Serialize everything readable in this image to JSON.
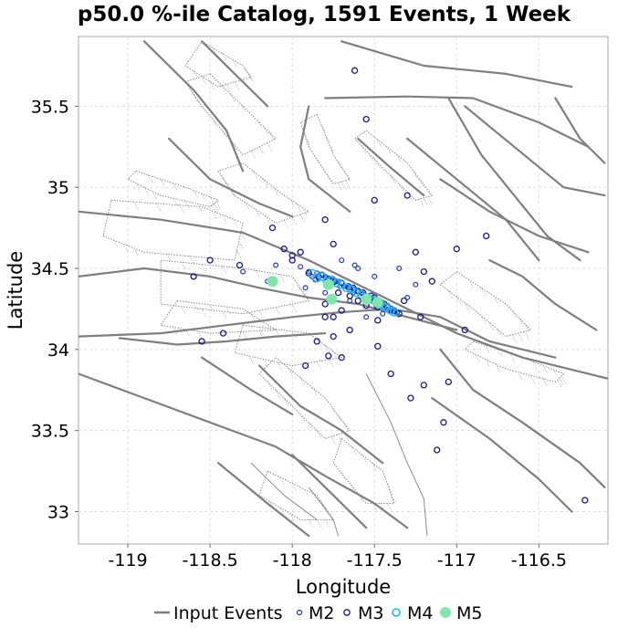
{
  "chart_data": {
    "type": "scatter",
    "title": "p50.0 %-ile Catalog, 1591 Events, 1 Week",
    "xlabel": "Longitude",
    "ylabel": "Latitude",
    "xlim": [
      -119.3,
      -116.08
    ],
    "ylim": [
      32.8,
      35.93
    ],
    "x_ticks": [
      -119,
      -118.5,
      -118,
      -117.5,
      -117,
      -116.5
    ],
    "x_tick_labels": [
      "-119",
      "-118.5",
      "-118",
      "-117.5",
      "-117",
      "-116.5"
    ],
    "y_ticks": [
      33,
      33.5,
      34,
      34.5,
      35,
      35.5
    ],
    "y_tick_labels": [
      "33",
      "33.5",
      "34",
      "34.5",
      "35",
      "35.5"
    ],
    "grid": true,
    "legend_position": "bottom",
    "legend": [
      {
        "label": "Input Events",
        "kind": "line",
        "color": "#7f7f7f"
      },
      {
        "label": "M2",
        "kind": "small-circle",
        "color": "#1f3fbf"
      },
      {
        "label": "M3",
        "kind": "circle",
        "color": "#1a1a8c"
      },
      {
        "label": "M4",
        "kind": "circle",
        "color": "#1fb4ff"
      },
      {
        "label": "M5",
        "kind": "filled-circle",
        "color": "#7fe8a8"
      }
    ],
    "fault_traces": [
      [
        [
          -119.3,
          34.85
        ],
        [
          -118.8,
          34.8
        ],
        [
          -118.3,
          34.72
        ],
        [
          -117.9,
          34.55
        ],
        [
          -117.6,
          34.4
        ],
        [
          -117.3,
          34.25
        ],
        [
          -117.0,
          34.1
        ],
        [
          -116.6,
          33.95
        ],
        [
          -116.08,
          33.82
        ]
      ],
      [
        [
          -119.3,
          34.45
        ],
        [
          -118.9,
          34.5
        ],
        [
          -118.5,
          34.45
        ],
        [
          -118.2,
          34.38
        ],
        [
          -117.9,
          34.32
        ],
        [
          -117.6,
          34.28
        ],
        [
          -117.3,
          34.2
        ],
        [
          -117.0,
          34.12
        ]
      ],
      [
        [
          -119.3,
          34.08
        ],
        [
          -118.8,
          34.1
        ],
        [
          -118.4,
          34.15
        ],
        [
          -118.0,
          34.2
        ],
        [
          -117.7,
          34.23
        ],
        [
          -117.4,
          34.25
        ],
        [
          -117.1,
          34.2
        ],
        [
          -116.8,
          34.05
        ],
        [
          -116.4,
          33.95
        ]
      ],
      [
        [
          -119.3,
          33.85
        ],
        [
          -118.9,
          33.7
        ],
        [
          -118.5,
          33.55
        ],
        [
          -118.1,
          33.4
        ],
        [
          -117.8,
          33.22
        ],
        [
          -117.5,
          33.05
        ],
        [
          -117.3,
          32.9
        ]
      ],
      [
        [
          -119.05,
          34.07
        ],
        [
          -118.7,
          34.03
        ],
        [
          -118.4,
          34.05
        ],
        [
          -118.1,
          34.08
        ],
        [
          -117.8,
          34.1
        ]
      ],
      [
        [
          -118.9,
          35.9
        ],
        [
          -118.6,
          35.6
        ],
        [
          -118.4,
          35.35
        ],
        [
          -118.3,
          35.1
        ]
      ],
      [
        [
          -118.55,
          35.9
        ],
        [
          -118.35,
          35.7
        ],
        [
          -118.15,
          35.5
        ]
      ],
      [
        [
          -117.7,
          35.9
        ],
        [
          -117.2,
          35.75
        ],
        [
          -116.7,
          35.7
        ],
        [
          -116.3,
          35.62
        ]
      ],
      [
        [
          -117.8,
          35.55
        ],
        [
          -117.3,
          35.56
        ],
        [
          -116.9,
          35.55
        ],
        [
          -116.5,
          35.4
        ],
        [
          -116.2,
          35.25
        ]
      ],
      [
        [
          -117.3,
          35.3
        ],
        [
          -117.0,
          35.05
        ],
        [
          -116.7,
          34.8
        ],
        [
          -116.5,
          34.55
        ]
      ],
      [
        [
          -117.05,
          35.55
        ],
        [
          -116.85,
          35.2
        ],
        [
          -116.65,
          34.95
        ],
        [
          -116.45,
          34.7
        ],
        [
          -116.25,
          34.55
        ]
      ],
      [
        [
          -117.1,
          35.05
        ],
        [
          -116.8,
          34.85
        ],
        [
          -116.5,
          34.7
        ],
        [
          -116.2,
          34.6
        ]
      ],
      [
        [
          -116.95,
          35.5
        ],
        [
          -116.65,
          35.25
        ],
        [
          -116.35,
          35.0
        ],
        [
          -116.1,
          34.95
        ]
      ],
      [
        [
          -116.8,
          34.55
        ],
        [
          -116.6,
          34.45
        ],
        [
          -116.4,
          34.28
        ],
        [
          -116.15,
          34.12
        ]
      ],
      [
        [
          -116.4,
          35.55
        ],
        [
          -116.25,
          35.3
        ],
        [
          -116.1,
          35.15
        ]
      ],
      [
        [
          -117.6,
          35.3
        ],
        [
          -117.4,
          35.12
        ],
        [
          -117.2,
          34.95
        ]
      ],
      [
        [
          -117.9,
          35.5
        ],
        [
          -117.95,
          35.25
        ],
        [
          -117.9,
          35.05
        ],
        [
          -117.65,
          34.85
        ]
      ],
      [
        [
          -118.75,
          35.3
        ],
        [
          -118.5,
          35.05
        ],
        [
          -118.2,
          34.9
        ],
        [
          -118.0,
          34.82
        ]
      ],
      [
        [
          -118.2,
          33.9
        ],
        [
          -117.95,
          33.65
        ],
        [
          -117.7,
          33.5
        ],
        [
          -117.45,
          33.3
        ]
      ],
      [
        [
          -118.0,
          33.35
        ],
        [
          -117.75,
          33.1
        ],
        [
          -117.55,
          32.9
        ]
      ],
      [
        [
          -117.15,
          33.7
        ],
        [
          -116.8,
          33.45
        ],
        [
          -116.5,
          33.2
        ],
        [
          -116.3,
          33.0
        ]
      ],
      [
        [
          -117.1,
          34.0
        ],
        [
          -116.9,
          33.75
        ],
        [
          -116.6,
          33.55
        ],
        [
          -116.25,
          33.3
        ],
        [
          -116.1,
          33.15
        ]
      ],
      [
        [
          -118.55,
          33.95
        ],
        [
          -118.25,
          33.75
        ],
        [
          -118.0,
          33.6
        ]
      ],
      [
        [
          -118.45,
          33.3
        ],
        [
          -118.15,
          33.05
        ],
        [
          -117.9,
          32.85
        ]
      ]
    ],
    "thin_traces": [
      [
        [
          -117.55,
          33.85
        ],
        [
          -117.4,
          33.55
        ],
        [
          -117.3,
          33.3
        ],
        [
          -117.2,
          33.08
        ],
        [
          -117.18,
          32.85
        ]
      ],
      [
        [
          -117.9,
          33.15
        ],
        [
          -117.75,
          32.95
        ],
        [
          -117.72,
          32.85
        ]
      ],
      [
        [
          -118.25,
          33.3
        ],
        [
          -118.05,
          33.1
        ],
        [
          -117.85,
          32.95
        ]
      ]
    ],
    "dotted_zones": [
      [
        [
          -119.1,
          34.92
        ],
        [
          -118.55,
          34.88
        ],
        [
          -118.3,
          34.78
        ],
        [
          -118.35,
          34.55
        ],
        [
          -118.9,
          34.6
        ],
        [
          -119.15,
          34.7
        ]
      ],
      [
        [
          -118.8,
          34.55
        ],
        [
          -118.3,
          34.5
        ],
        [
          -118.0,
          34.45
        ],
        [
          -117.9,
          34.3
        ],
        [
          -118.3,
          34.22
        ],
        [
          -118.8,
          34.28
        ]
      ],
      [
        [
          -118.7,
          34.3
        ],
        [
          -118.3,
          34.25
        ],
        [
          -118.1,
          34.12
        ],
        [
          -118.5,
          34.1
        ],
        [
          -118.8,
          34.15
        ]
      ],
      [
        [
          -118.3,
          34.15
        ],
        [
          -117.9,
          34.1
        ],
        [
          -117.7,
          33.95
        ],
        [
          -118.0,
          33.9
        ],
        [
          -118.35,
          33.98
        ]
      ],
      [
        [
          -118.1,
          33.95
        ],
        [
          -117.8,
          33.7
        ],
        [
          -117.65,
          33.5
        ],
        [
          -117.8,
          33.45
        ],
        [
          -118.0,
          33.65
        ],
        [
          -118.2,
          33.85
        ]
      ],
      [
        [
          -118.15,
          33.25
        ],
        [
          -117.85,
          33.1
        ],
        [
          -117.75,
          32.95
        ],
        [
          -117.95,
          32.95
        ],
        [
          -118.2,
          33.1
        ]
      ],
      [
        [
          -117.7,
          33.45
        ],
        [
          -117.45,
          33.25
        ],
        [
          -117.38,
          33.05
        ],
        [
          -117.55,
          33.05
        ],
        [
          -117.75,
          33.3
        ]
      ],
      [
        [
          -118.5,
          35.7
        ],
        [
          -118.25,
          35.45
        ],
        [
          -118.1,
          35.3
        ],
        [
          -118.3,
          35.2
        ],
        [
          -118.55,
          35.5
        ],
        [
          -118.65,
          35.65
        ]
      ],
      [
        [
          -118.3,
          35.15
        ],
        [
          -118.05,
          34.95
        ],
        [
          -117.9,
          34.85
        ],
        [
          -118.1,
          34.78
        ],
        [
          -118.35,
          34.95
        ],
        [
          -118.45,
          35.1
        ]
      ],
      [
        [
          -117.85,
          35.45
        ],
        [
          -117.75,
          35.2
        ],
        [
          -117.65,
          35.05
        ],
        [
          -117.75,
          35.02
        ],
        [
          -117.9,
          35.25
        ],
        [
          -117.95,
          35.4
        ]
      ],
      [
        [
          -117.55,
          35.35
        ],
        [
          -117.3,
          35.15
        ],
        [
          -117.15,
          34.95
        ],
        [
          -117.25,
          34.92
        ],
        [
          -117.45,
          35.12
        ],
        [
          -117.62,
          35.3
        ]
      ],
      [
        [
          -117.0,
          34.48
        ],
        [
          -116.7,
          34.28
        ],
        [
          -116.55,
          34.12
        ],
        [
          -116.7,
          34.08
        ],
        [
          -116.9,
          34.25
        ],
        [
          -117.1,
          34.4
        ]
      ],
      [
        [
          -116.9,
          34.05
        ],
        [
          -116.6,
          33.95
        ],
        [
          -116.35,
          33.85
        ],
        [
          -116.4,
          33.8
        ],
        [
          -116.7,
          33.88
        ],
        [
          -116.95,
          34.0
        ]
      ],
      [
        [
          -118.95,
          35.1
        ],
        [
          -118.65,
          35.0
        ],
        [
          -118.45,
          34.92
        ],
        [
          -118.5,
          34.88
        ],
        [
          -118.8,
          34.95
        ],
        [
          -119.0,
          35.05
        ]
      ],
      [
        [
          -118.55,
          35.9
        ],
        [
          -118.3,
          35.75
        ],
        [
          -118.25,
          35.68
        ],
        [
          -118.45,
          35.62
        ],
        [
          -118.65,
          35.75
        ]
      ]
    ],
    "series": [
      {
        "name": "M2",
        "x": [
          -117.85,
          -117.82,
          -117.8,
          -117.78,
          -117.75,
          -117.72,
          -117.7,
          -117.68,
          -117.65,
          -117.62,
          -117.6,
          -117.58,
          -117.55,
          -117.52,
          -117.5,
          -117.48,
          -117.45,
          -117.42,
          -117.4,
          -117.38,
          -117.9,
          -117.88,
          -117.84,
          -117.77,
          -117.73,
          -117.66,
          -117.63,
          -117.57,
          -117.53,
          -117.47,
          -117.44,
          -117.41,
          -117.36,
          -117.86,
          -117.79,
          -117.71,
          -117.64,
          -117.56,
          -117.49,
          -117.43,
          -117.95,
          -117.6,
          -117.7,
          -117.5,
          -117.55,
          -117.8,
          -117.65,
          -118.1,
          -118.15,
          -117.3,
          -117.35,
          -118.3,
          -117.25,
          -117.92,
          -117.75,
          -117.45,
          -117.62
        ],
        "y": [
          34.47,
          34.46,
          34.45,
          34.44,
          34.43,
          34.42,
          34.41,
          34.39,
          34.38,
          34.37,
          34.36,
          34.35,
          34.33,
          34.32,
          34.31,
          34.29,
          34.28,
          34.27,
          34.25,
          34.24,
          34.48,
          34.45,
          34.44,
          34.41,
          34.4,
          34.38,
          34.35,
          34.34,
          34.3,
          34.28,
          34.26,
          34.24,
          34.23,
          34.43,
          34.42,
          34.39,
          34.36,
          34.31,
          34.27,
          34.25,
          34.51,
          34.5,
          34.55,
          34.45,
          34.2,
          34.35,
          34.3,
          34.52,
          34.42,
          34.32,
          34.5,
          34.48,
          34.4,
          34.38,
          34.3,
          34.22,
          34.52
        ]
      },
      {
        "name": "M3",
        "x": [
          -117.9,
          -117.84,
          -117.78,
          -117.7,
          -117.63,
          -117.57,
          -117.5,
          -117.44,
          -117.4,
          -117.82,
          -117.74,
          -117.66,
          -117.6,
          -117.52,
          -117.46,
          -117.38,
          -117.72,
          -117.6,
          -117.48,
          -117.8,
          -117.35,
          -117.55,
          -117.65,
          -117.7,
          -117.75,
          -117.95,
          -118.0,
          -118.05,
          -118.5,
          -118.55,
          -118.6,
          -118.42,
          -118.12,
          -118.0,
          -117.8,
          -117.75,
          -117.55,
          -117.5,
          -117.3,
          -117.25,
          -117.2,
          -117.15,
          -117.32,
          -117.22,
          -117.0,
          -116.95,
          -117.05,
          -116.82,
          -117.08,
          -117.92,
          -117.7,
          -117.85,
          -117.75,
          -117.48,
          -117.4,
          -117.28,
          -117.2,
          -116.22,
          -117.12,
          -118.32,
          -117.62,
          -117.65,
          -117.78,
          -117.8,
          -117.48
        ],
        "y": [
          34.47,
          34.45,
          34.43,
          34.41,
          34.38,
          34.35,
          34.32,
          34.28,
          34.25,
          34.46,
          34.42,
          34.39,
          34.36,
          34.33,
          34.29,
          34.24,
          34.35,
          34.3,
          34.26,
          34.28,
          34.22,
          34.27,
          34.33,
          34.24,
          34.2,
          34.6,
          34.55,
          34.62,
          34.55,
          34.05,
          34.45,
          34.1,
          34.75,
          34.58,
          34.8,
          34.65,
          35.42,
          34.92,
          34.95,
          34.6,
          34.48,
          34.42,
          34.3,
          34.2,
          34.62,
          34.12,
          33.8,
          34.7,
          33.55,
          33.9,
          33.95,
          34.05,
          34.08,
          34.02,
          33.85,
          33.7,
          33.78,
          33.07,
          33.38,
          34.52,
          35.72,
          34.12,
          33.96,
          34.2,
          34.18
        ]
      },
      {
        "name": "M4",
        "x": [
          -117.88,
          -117.82,
          -117.76,
          -117.7,
          -117.64,
          -117.58,
          -117.52,
          -117.47,
          -117.43,
          -117.4,
          -117.85,
          -117.73,
          -117.61,
          -117.55,
          -117.45,
          -117.79,
          -117.67,
          -117.5,
          -117.38
        ],
        "y": [
          34.47,
          34.45,
          34.43,
          34.4,
          34.37,
          34.34,
          34.31,
          34.28,
          34.26,
          34.24,
          34.44,
          34.41,
          34.35,
          34.32,
          34.27,
          34.42,
          34.38,
          34.3,
          34.23
        ]
      },
      {
        "name": "M5",
        "x": [
          -118.12,
          -117.78,
          -117.76,
          -117.55,
          -117.48
        ],
        "y": [
          34.42,
          34.4,
          34.31,
          34.31,
          34.29
        ]
      }
    ]
  }
}
